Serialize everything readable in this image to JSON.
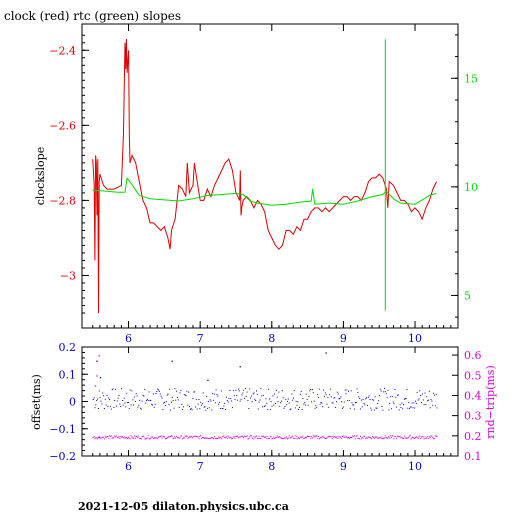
{
  "title": "clock (red) rtc (green) slopes",
  "footer": "2021-12-05  dilaton.physics.ubc.ca",
  "colors": {
    "clock": "#dd0000",
    "rtc": "#00dd00",
    "offset": "#0000cc",
    "rtt": "#dd00dd",
    "axis": "#000000"
  },
  "chart_data": [
    {
      "type": "line",
      "title": "clock (red) rtc (green) slopes",
      "ylabel": "clockslope",
      "y2label": "",
      "xlim": [
        5.35,
        10.6
      ],
      "ylim": [
        -3.14,
        -2.33
      ],
      "y2lim": [
        3.5,
        17.5
      ],
      "x_ticks": [
        6,
        7,
        8,
        9,
        10
      ],
      "y_ticks": [
        -2.4,
        -2.6,
        -2.8,
        -3
      ],
      "y_tick_labels": [
        "−2.4",
        "−2.6",
        "−2.8",
        "−3"
      ],
      "y2_ticks": [
        5,
        10,
        15
      ],
      "series": [
        {
          "name": "clock",
          "axis": "left",
          "points": [
            [
              5.5,
              -2.69
            ],
            [
              5.52,
              -2.76
            ],
            [
              5.53,
              -2.96
            ],
            [
              5.54,
              -2.68
            ],
            [
              5.55,
              -2.7
            ],
            [
              5.56,
              -2.84
            ],
            [
              5.57,
              -2.69
            ],
            [
              5.58,
              -3.1
            ],
            [
              5.59,
              -2.75
            ],
            [
              5.6,
              -2.73
            ],
            [
              5.65,
              -2.76
            ],
            [
              5.7,
              -2.77
            ],
            [
              5.8,
              -2.77
            ],
            [
              5.9,
              -2.76
            ],
            [
              5.93,
              -2.62
            ],
            [
              5.95,
              -2.38
            ],
            [
              5.96,
              -2.45
            ],
            [
              5.97,
              -2.37
            ],
            [
              5.98,
              -2.46
            ],
            [
              6.0,
              -2.4
            ],
            [
              6.01,
              -2.62
            ],
            [
              6.02,
              -2.7
            ],
            [
              6.05,
              -2.68
            ],
            [
              6.1,
              -2.7
            ],
            [
              6.15,
              -2.75
            ],
            [
              6.2,
              -2.8
            ],
            [
              6.25,
              -2.82
            ],
            [
              6.3,
              -2.86
            ],
            [
              6.35,
              -2.86
            ],
            [
              6.4,
              -2.87
            ],
            [
              6.45,
              -2.88
            ],
            [
              6.5,
              -2.87
            ],
            [
              6.55,
              -2.9
            ],
            [
              6.58,
              -2.93
            ],
            [
              6.6,
              -2.88
            ],
            [
              6.65,
              -2.85
            ],
            [
              6.7,
              -2.76
            ],
            [
              6.75,
              -2.77
            ],
            [
              6.8,
              -2.79
            ],
            [
              6.82,
              -2.7
            ],
            [
              6.85,
              -2.78
            ],
            [
              6.9,
              -2.76
            ],
            [
              6.92,
              -2.7
            ],
            [
              6.95,
              -2.74
            ],
            [
              7.0,
              -2.8
            ],
            [
              7.05,
              -2.8
            ],
            [
              7.1,
              -2.77
            ],
            [
              7.15,
              -2.79
            ],
            [
              7.2,
              -2.76
            ],
            [
              7.25,
              -2.74
            ],
            [
              7.3,
              -2.72
            ],
            [
              7.35,
              -2.7
            ],
            [
              7.4,
              -2.69
            ],
            [
              7.45,
              -2.72
            ],
            [
              7.5,
              -2.78
            ],
            [
              7.55,
              -2.8
            ],
            [
              7.56,
              -2.72
            ],
            [
              7.57,
              -2.84
            ],
            [
              7.58,
              -2.82
            ],
            [
              7.6,
              -2.8
            ],
            [
              7.65,
              -2.79
            ],
            [
              7.7,
              -2.8
            ],
            [
              7.75,
              -2.82
            ],
            [
              7.8,
              -2.8
            ],
            [
              7.85,
              -2.81
            ],
            [
              7.9,
              -2.83
            ],
            [
              7.95,
              -2.88
            ],
            [
              8.0,
              -2.9
            ],
            [
              8.05,
              -2.92
            ],
            [
              8.1,
              -2.93
            ],
            [
              8.15,
              -2.92
            ],
            [
              8.2,
              -2.88
            ],
            [
              8.25,
              -2.88
            ],
            [
              8.3,
              -2.89
            ],
            [
              8.35,
              -2.87
            ],
            [
              8.4,
              -2.88
            ],
            [
              8.45,
              -2.85
            ],
            [
              8.5,
              -2.85
            ],
            [
              8.55,
              -2.83
            ],
            [
              8.6,
              -2.82
            ],
            [
              8.65,
              -2.82
            ],
            [
              8.7,
              -2.83
            ],
            [
              8.75,
              -2.82
            ],
            [
              8.8,
              -2.83
            ],
            [
              8.85,
              -2.82
            ],
            [
              8.9,
              -2.81
            ],
            [
              8.95,
              -2.8
            ],
            [
              9.0,
              -2.79
            ],
            [
              9.05,
              -2.79
            ],
            [
              9.1,
              -2.8
            ],
            [
              9.15,
              -2.79
            ],
            [
              9.2,
              -2.79
            ],
            [
              9.25,
              -2.8
            ],
            [
              9.3,
              -2.78
            ],
            [
              9.35,
              -2.75
            ],
            [
              9.4,
              -2.74
            ],
            [
              9.45,
              -2.74
            ],
            [
              9.5,
              -2.73
            ],
            [
              9.55,
              -2.74
            ],
            [
              9.6,
              -2.77
            ],
            [
              9.62,
              -2.82
            ],
            [
              9.64,
              -2.75
            ],
            [
              9.7,
              -2.76
            ],
            [
              9.75,
              -2.78
            ],
            [
              9.8,
              -2.8
            ],
            [
              9.85,
              -2.8
            ],
            [
              9.9,
              -2.81
            ],
            [
              9.95,
              -2.83
            ],
            [
              10.0,
              -2.82
            ],
            [
              10.05,
              -2.83
            ],
            [
              10.1,
              -2.85
            ],
            [
              10.15,
              -2.82
            ],
            [
              10.2,
              -2.8
            ],
            [
              10.25,
              -2.77
            ],
            [
              10.3,
              -2.75
            ]
          ]
        },
        {
          "name": "rtc",
          "axis": "right",
          "points": [
            [
              5.5,
              9.85
            ],
            [
              5.7,
              9.8
            ],
            [
              5.85,
              9.75
            ],
            [
              5.95,
              9.75
            ],
            [
              5.98,
              10.4
            ],
            [
              6.05,
              10.1
            ],
            [
              6.15,
              9.6
            ],
            [
              6.3,
              9.45
            ],
            [
              6.5,
              9.4
            ],
            [
              6.7,
              9.35
            ],
            [
              6.9,
              9.45
            ],
            [
              7.1,
              9.6
            ],
            [
              7.3,
              9.65
            ],
            [
              7.5,
              9.7
            ],
            [
              7.6,
              9.65
            ],
            [
              7.7,
              9.35
            ],
            [
              7.8,
              9.25
            ],
            [
              8.0,
              9.15
            ],
            [
              8.2,
              9.2
            ],
            [
              8.4,
              9.3
            ],
            [
              8.55,
              9.35
            ],
            [
              8.57,
              9.9
            ],
            [
              8.6,
              9.2
            ],
            [
              8.8,
              9.25
            ],
            [
              9.0,
              9.2
            ],
            [
              9.2,
              9.35
            ],
            [
              9.4,
              9.55
            ],
            [
              9.55,
              9.65
            ],
            [
              9.6,
              9.8
            ],
            [
              9.7,
              9.45
            ],
            [
              9.8,
              9.25
            ],
            [
              10.0,
              9.2
            ],
            [
              10.1,
              9.4
            ],
            [
              10.2,
              9.6
            ],
            [
              10.3,
              9.7
            ]
          ]
        },
        {
          "name": "rtc spike",
          "axis": "right",
          "points": [
            [
              9.585,
              4.3
            ],
            [
              9.585,
              16.8
            ]
          ]
        }
      ]
    },
    {
      "type": "scatter",
      "ylabel": "offset(ms)",
      "y2label": "rnd−trip(ms)",
      "xlim": [
        5.35,
        10.6
      ],
      "ylim": [
        -0.2,
        0.2
      ],
      "y2lim": [
        0.1,
        0.64
      ],
      "x_ticks": [
        6,
        7,
        8,
        9,
        10
      ],
      "y_ticks": [
        0.2,
        0.1,
        0,
        -0.1,
        -0.2
      ],
      "y_tick_labels": [
        "0.2",
        "0.1",
        "0",
        "−0.1",
        "−0.2"
      ],
      "y2_ticks": [
        0.1,
        0.2,
        0.3,
        0.4,
        0.5,
        0.6
      ],
      "series": [
        {
          "name": "offset",
          "axis": "left",
          "center": 0.01,
          "spread": 0.04,
          "outliers": [
            [
              5.55,
              0.15
            ],
            [
              5.58,
              -0.13
            ],
            [
              6.6,
              0.15
            ],
            [
              7.55,
              0.13
            ],
            [
              8.75,
              0.18
            ],
            [
              5.6,
              0.09
            ],
            [
              7.1,
              0.08
            ]
          ]
        },
        {
          "name": "rnd-trip",
          "axis": "right",
          "center": 0.195,
          "spread": 0.008,
          "outliers": [
            [
              5.58,
              0.6
            ],
            [
              5.55,
              0.5
            ],
            [
              5.53,
              0.45
            ]
          ]
        }
      ]
    }
  ]
}
